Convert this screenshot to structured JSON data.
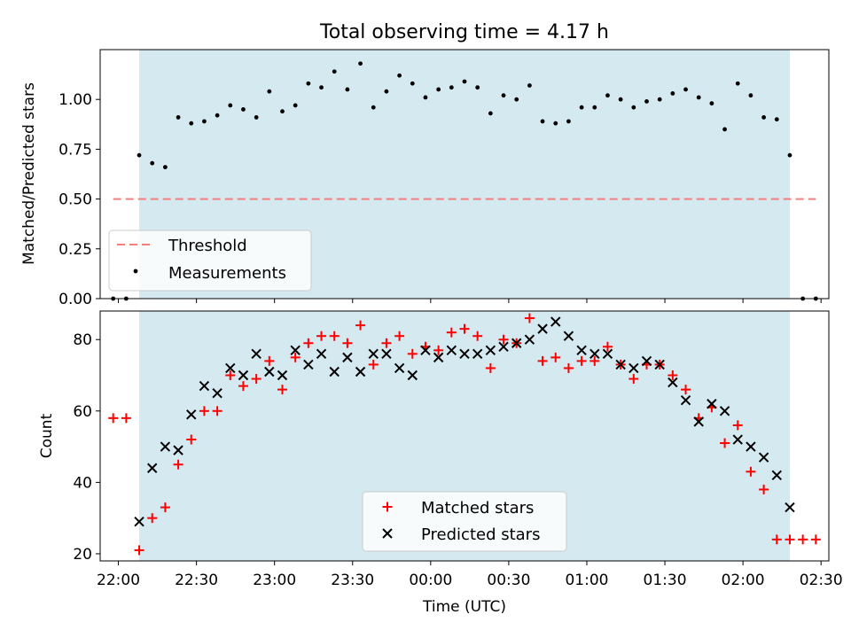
{
  "chart_data": [
    {
      "type": "scatter",
      "title": "Total observing time = 4.17 h",
      "ylabel": "Matched/Predicted stars",
      "xlabel": "",
      "x_unit": "hours since 22:00 UTC",
      "xlim": [
        "21:53",
        "02:33"
      ],
      "ylim": [
        0,
        1.25
      ],
      "yticks": [
        "0.00",
        "0.25",
        "0.50",
        "0.75",
        "1.00"
      ],
      "grid": false,
      "legend_position": "lower-left",
      "shaded_interval": [
        "22:08",
        "02:18"
      ],
      "threshold": {
        "name": "Threshold",
        "y": 0.5,
        "x_range": [
          "21:58",
          "02:28"
        ],
        "color": "#f28080"
      },
      "series": [
        {
          "name": "Measurements",
          "color": "#000000",
          "x": [
            "21:58",
            "22:03",
            "22:08",
            "22:13",
            "22:18",
            "22:23",
            "22:28",
            "22:33",
            "22:38",
            "22:43",
            "22:48",
            "22:53",
            "22:58",
            "23:03",
            "23:08",
            "23:13",
            "23:18",
            "23:23",
            "23:28",
            "23:33",
            "23:38",
            "23:43",
            "23:48",
            "23:53",
            "23:58",
            "00:03",
            "00:08",
            "00:13",
            "00:18",
            "00:23",
            "00:28",
            "00:33",
            "00:38",
            "00:43",
            "00:48",
            "00:53",
            "00:58",
            "01:03",
            "01:08",
            "01:13",
            "01:18",
            "01:23",
            "01:28",
            "01:33",
            "01:38",
            "01:43",
            "01:48",
            "01:53",
            "01:58",
            "02:03",
            "02:08",
            "02:13",
            "02:18",
            "02:23",
            "02:28"
          ],
          "y": [
            0.0,
            0.0,
            0.72,
            0.68,
            0.66,
            0.91,
            0.88,
            0.89,
            0.92,
            0.97,
            0.95,
            0.91,
            1.04,
            0.94,
            0.97,
            1.08,
            1.06,
            1.14,
            1.05,
            1.18,
            0.96,
            1.04,
            1.12,
            1.08,
            1.01,
            1.05,
            1.06,
            1.09,
            1.06,
            0.93,
            1.02,
            1.0,
            1.07,
            0.89,
            0.88,
            0.89,
            0.96,
            0.96,
            1.02,
            1.0,
            0.96,
            0.99,
            1.0,
            1.03,
            1.05,
            1.01,
            0.98,
            0.85,
            1.08,
            1.02,
            0.91,
            0.9,
            0.72,
            0.0,
            0.0
          ]
        }
      ]
    },
    {
      "type": "scatter",
      "title": "",
      "ylabel": "Count",
      "xlabel": "Time (UTC)",
      "xlim": [
        "21:53",
        "02:33"
      ],
      "ylim": [
        18,
        88
      ],
      "yticks": [
        "20",
        "40",
        "60",
        "80"
      ],
      "xticks": [
        "22:00",
        "22:30",
        "23:00",
        "23:30",
        "00:00",
        "00:30",
        "01:00",
        "01:30",
        "02:00",
        "02:30"
      ],
      "grid": false,
      "legend_position": "lower-center",
      "shaded_interval": [
        "22:08",
        "02:18"
      ],
      "series": [
        {
          "name": "Matched stars",
          "marker": "plus",
          "color": "#ff0000",
          "x": [
            "21:58",
            "22:03",
            "22:08",
            "22:13",
            "22:18",
            "22:23",
            "22:28",
            "22:33",
            "22:38",
            "22:43",
            "22:48",
            "22:53",
            "22:58",
            "23:03",
            "23:08",
            "23:13",
            "23:18",
            "23:23",
            "23:28",
            "23:33",
            "23:38",
            "23:43",
            "23:48",
            "23:53",
            "23:58",
            "00:03",
            "00:08",
            "00:13",
            "00:18",
            "00:23",
            "00:28",
            "00:33",
            "00:38",
            "00:43",
            "00:48",
            "00:53",
            "00:58",
            "01:03",
            "01:08",
            "01:13",
            "01:18",
            "01:23",
            "01:28",
            "01:33",
            "01:38",
            "01:43",
            "01:48",
            "01:53",
            "01:58",
            "02:03",
            "02:08",
            "02:13",
            "02:18",
            "02:23",
            "02:28"
          ],
          "y": [
            58,
            58,
            21,
            30,
            33,
            45,
            52,
            60,
            60,
            70,
            67,
            69,
            74,
            66,
            75,
            79,
            81,
            81,
            79,
            84,
            73,
            79,
            81,
            76,
            78,
            77,
            82,
            83,
            81,
            72,
            80,
            79,
            86,
            74,
            75,
            72,
            74,
            74,
            78,
            73,
            69,
            73,
            73,
            70,
            66,
            58,
            61,
            51,
            56,
            43,
            38,
            24,
            24,
            24,
            24
          ]
        },
        {
          "name": "Predicted stars",
          "marker": "x",
          "color": "#000000",
          "x": [
            "22:08",
            "22:13",
            "22:18",
            "22:23",
            "22:28",
            "22:33",
            "22:38",
            "22:43",
            "22:48",
            "22:53",
            "22:58",
            "23:03",
            "23:08",
            "23:13",
            "23:18",
            "23:23",
            "23:28",
            "23:33",
            "23:38",
            "23:43",
            "23:48",
            "23:53",
            "23:58",
            "00:03",
            "00:08",
            "00:13",
            "00:18",
            "00:23",
            "00:28",
            "00:33",
            "00:38",
            "00:43",
            "00:48",
            "00:53",
            "00:58",
            "01:03",
            "01:08",
            "01:13",
            "01:18",
            "01:23",
            "01:28",
            "01:33",
            "01:38",
            "01:43",
            "01:48",
            "01:53",
            "01:58",
            "02:03",
            "02:08",
            "02:13",
            "02:18"
          ],
          "y": [
            29,
            44,
            50,
            49,
            59,
            67,
            65,
            72,
            70,
            76,
            71,
            70,
            77,
            73,
            76,
            71,
            75,
            71,
            76,
            76,
            72,
            70,
            77,
            75,
            77,
            76,
            76,
            77,
            78,
            79,
            80,
            83,
            85,
            81,
            77,
            76,
            76,
            73,
            72,
            74,
            73,
            68,
            63,
            57,
            62,
            60,
            52,
            50,
            47,
            42,
            33
          ]
        }
      ]
    }
  ],
  "colors": {
    "shade": "#d4e9f0",
    "threshold": "#f28080",
    "matched": "#ff0000",
    "predicted": "#000000",
    "measurement": "#000000"
  }
}
